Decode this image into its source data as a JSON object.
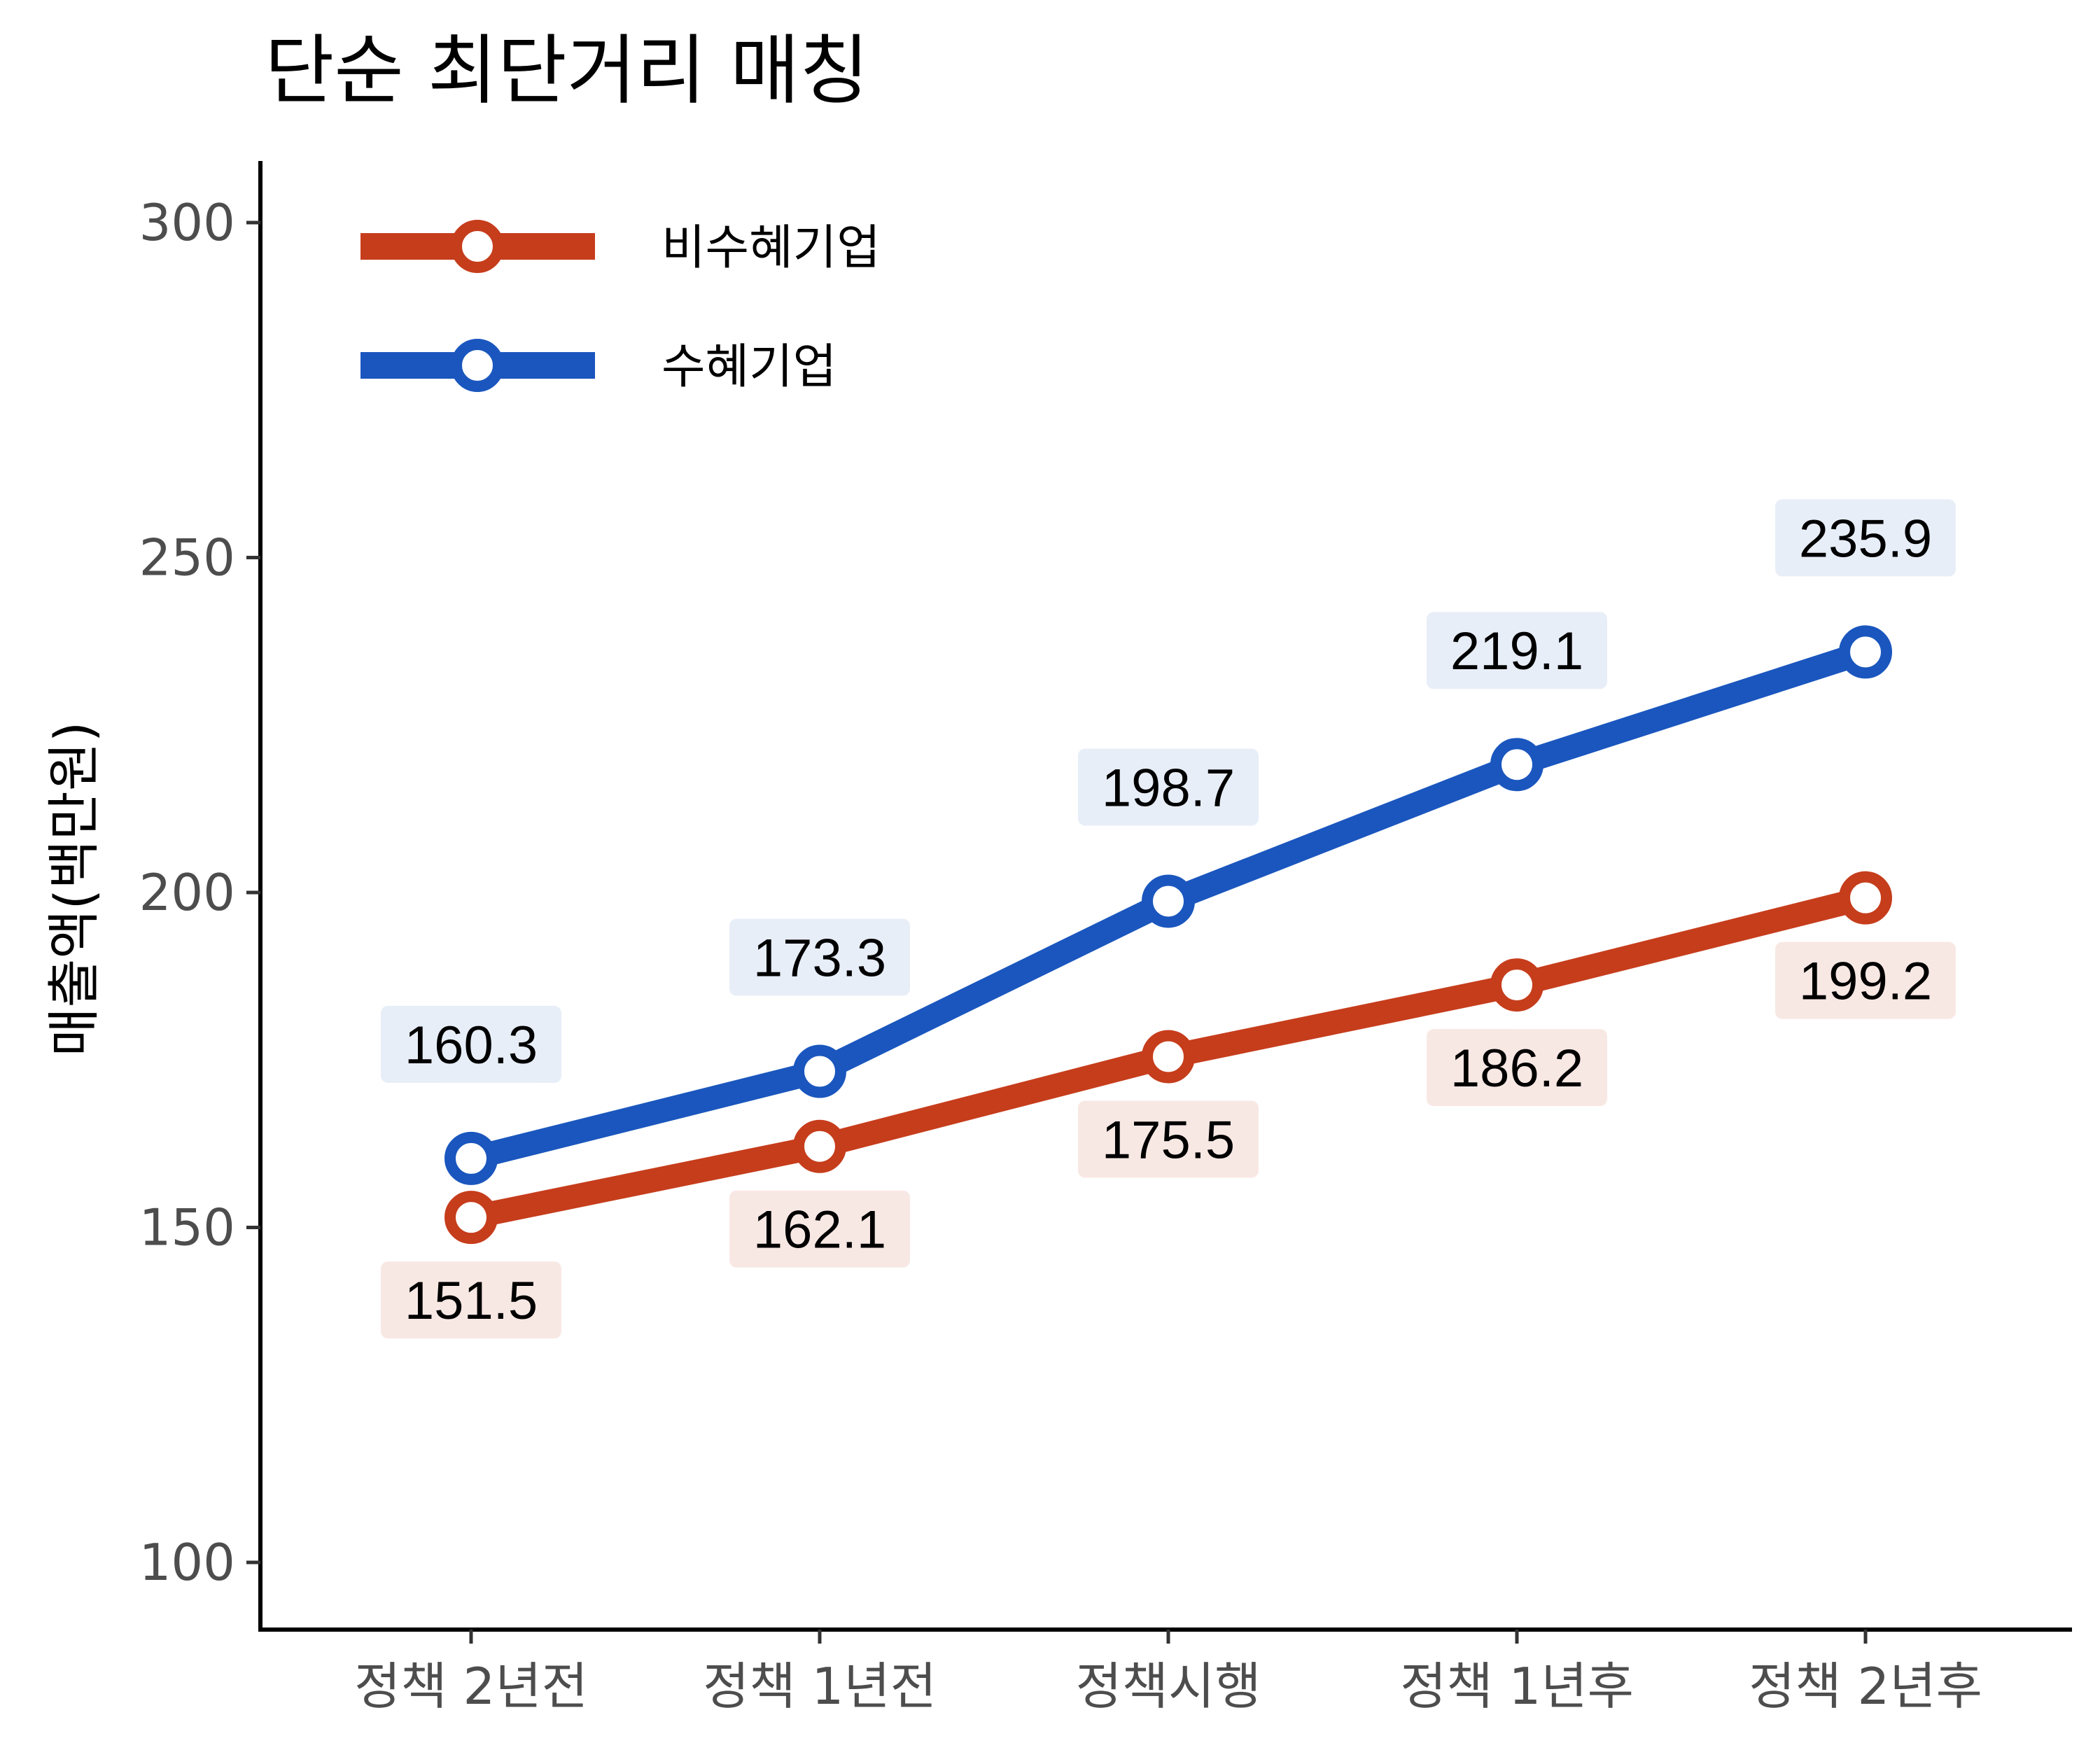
{
  "chart_data": {
    "type": "line",
    "title": "단순 최단거리 매칭",
    "xlabel": "",
    "ylabel": "매출액(백만원)",
    "categories": [
      "정책 2년전",
      "정책 1년전",
      "정책시행",
      "정책 1년후",
      "정책 2년후"
    ],
    "ylim": [
      90,
      310
    ],
    "yticks": [
      100,
      150,
      200,
      250,
      300
    ],
    "grid": false,
    "legend_position": "top-left",
    "series": [
      {
        "name": "비수혜기업",
        "color": "#C63D1C",
        "label_bg": "#F8E8E4",
        "values": [
          151.5,
          162.1,
          175.5,
          186.2,
          199.2
        ],
        "labels": [
          "151.5",
          "162.1",
          "175.5",
          "186.2",
          "199.2"
        ],
        "label_side": "below"
      },
      {
        "name": "수혜기업",
        "color": "#1A56BE",
        "label_bg": "#E8EEF8",
        "values": [
          160.3,
          173.3,
          198.7,
          219.1,
          235.9
        ],
        "labels": [
          "160.3",
          "173.3",
          "198.7",
          "219.1",
          "235.9"
        ],
        "label_side": "above"
      }
    ]
  }
}
